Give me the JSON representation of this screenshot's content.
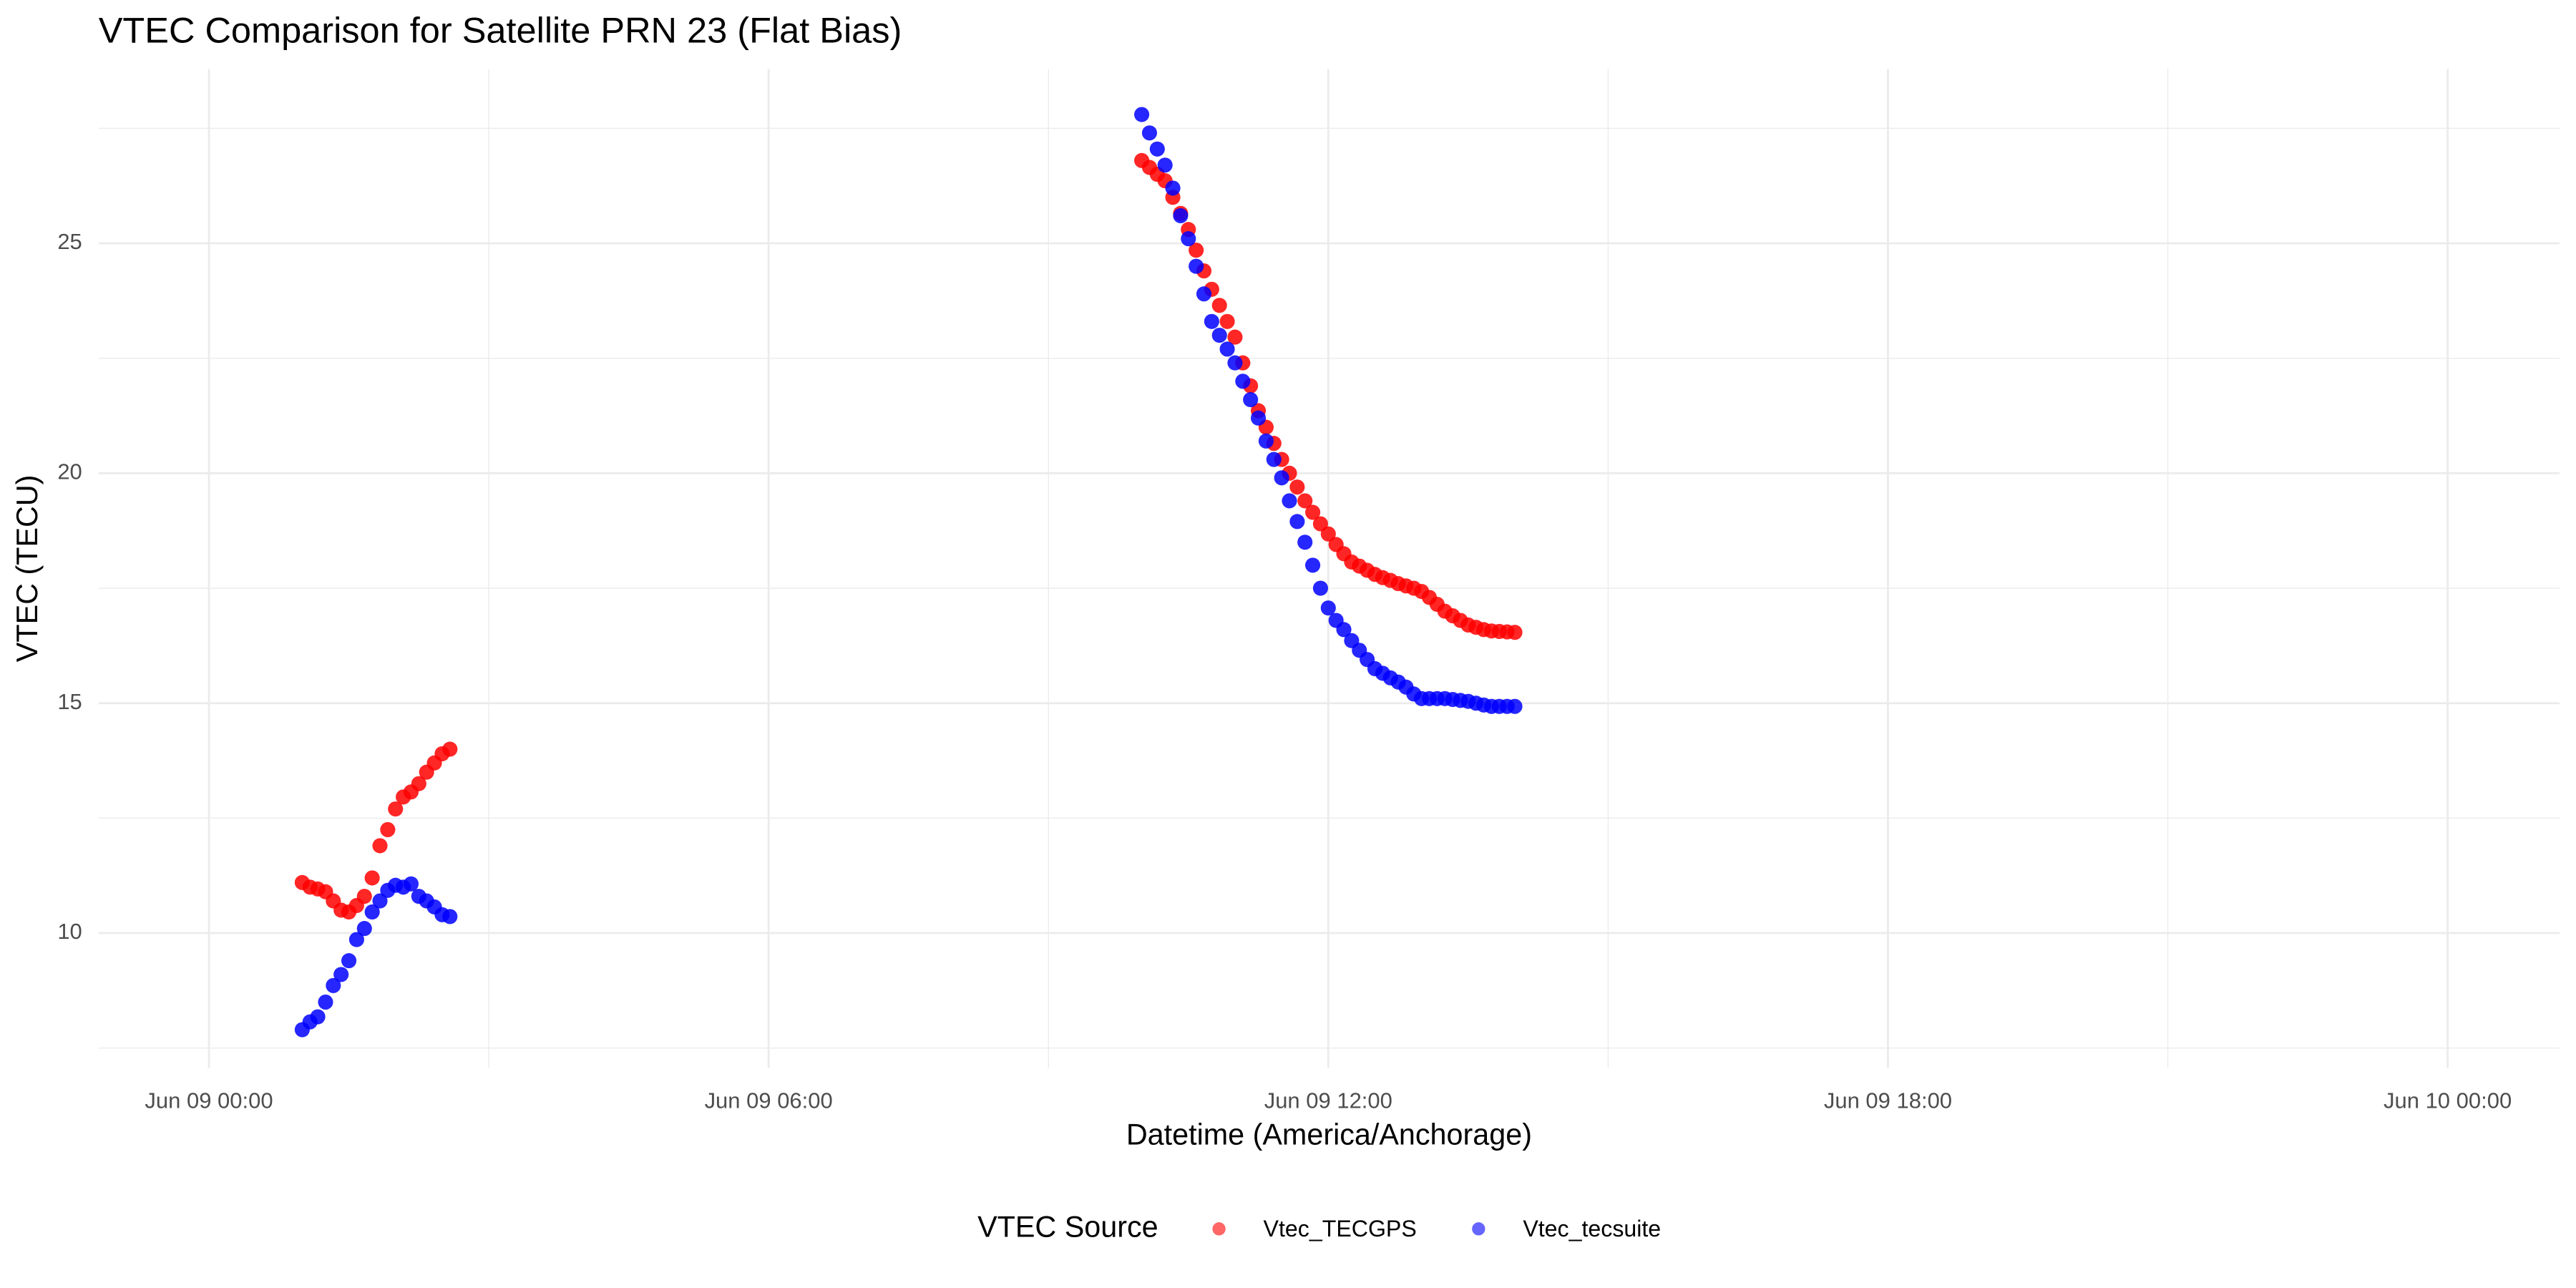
{
  "chart_data": {
    "type": "scatter",
    "title": "VTEC Comparison for Satellite PRN 23 (Flat Bias)",
    "x_label": "Datetime (America/Anchorage)",
    "y_label": "VTEC (TECU)",
    "legend_title": "VTEC Source",
    "legend": "bottom",
    "grid": true,
    "xlim": [
      "Jun 08 22:49",
      "Jun 10 01:12"
    ],
    "xticks": [
      "Jun 09 00:00",
      "Jun 09 06:00",
      "Jun 09 12:00",
      "Jun 09 18:00",
      "Jun 10 00:00"
    ],
    "x_minor_ticks": [
      "Jun 09 03:00",
      "Jun 09 09:00",
      "Jun 09 15:00",
      "Jun 09 21:00"
    ],
    "ylim": [
      7.07,
      28.79
    ],
    "yticks": [
      10,
      15,
      20,
      25
    ],
    "y_minor_ticks": [
      7.5,
      12.5,
      17.5,
      22.5,
      27.5
    ],
    "x": [
      "Jun 09 01:00",
      "Jun 09 01:05",
      "Jun 09 01:10",
      "Jun 09 01:15",
      "Jun 09 01:20",
      "Jun 09 01:25",
      "Jun 09 01:30",
      "Jun 09 01:35",
      "Jun 09 01:40",
      "Jun 09 01:45",
      "Jun 09 01:50",
      "Jun 09 01:55",
      "Jun 09 02:00",
      "Jun 09 02:05",
      "Jun 09 02:10",
      "Jun 09 02:15",
      "Jun 09 02:20",
      "Jun 09 02:25",
      "Jun 09 02:30",
      "Jun 09 02:35",
      "Jun 09 10:00",
      "Jun 09 10:05",
      "Jun 09 10:10",
      "Jun 09 10:15",
      "Jun 09 10:20",
      "Jun 09 10:25",
      "Jun 09 10:30",
      "Jun 09 10:35",
      "Jun 09 10:40",
      "Jun 09 10:45",
      "Jun 09 10:50",
      "Jun 09 10:55",
      "Jun 09 11:00",
      "Jun 09 11:05",
      "Jun 09 11:10",
      "Jun 09 11:15",
      "Jun 09 11:20",
      "Jun 09 11:25",
      "Jun 09 11:30",
      "Jun 09 11:35",
      "Jun 09 11:40",
      "Jun 09 11:45",
      "Jun 09 11:50",
      "Jun 09 11:55",
      "Jun 09 12:00",
      "Jun 09 12:05",
      "Jun 09 12:10",
      "Jun 09 12:15",
      "Jun 09 12:20",
      "Jun 09 12:25",
      "Jun 09 12:30",
      "Jun 09 12:35",
      "Jun 09 12:40",
      "Jun 09 12:45",
      "Jun 09 12:50",
      "Jun 09 12:55",
      "Jun 09 13:00",
      "Jun 09 13:05",
      "Jun 09 13:10",
      "Jun 09 13:15",
      "Jun 09 13:20",
      "Jun 09 13:25",
      "Jun 09 13:30",
      "Jun 09 13:35",
      "Jun 09 13:40",
      "Jun 09 13:45",
      "Jun 09 13:50",
      "Jun 09 13:55",
      "Jun 09 14:00"
    ],
    "series": [
      {
        "name": "Vtec_TECGPS",
        "color": "#ff0000",
        "values": [
          11.1,
          11.0,
          10.96,
          10.9,
          10.7,
          10.5,
          10.46,
          10.6,
          10.8,
          11.2,
          11.9,
          12.25,
          12.7,
          12.96,
          13.07,
          13.25,
          13.5,
          13.7,
          13.9,
          14.0,
          26.8,
          26.65,
          26.5,
          26.36,
          26.0,
          25.65,
          25.3,
          24.85,
          24.4,
          24.0,
          23.65,
          23.3,
          22.96,
          22.4,
          21.9,
          21.36,
          21.0,
          20.65,
          20.3,
          20.0,
          19.7,
          19.4,
          19.15,
          18.9,
          18.68,
          18.45,
          18.25,
          18.07,
          17.98,
          17.89,
          17.8,
          17.73,
          17.67,
          17.6,
          17.55,
          17.5,
          17.43,
          17.3,
          17.15,
          17.0,
          16.9,
          16.8,
          16.7,
          16.65,
          16.6,
          16.57,
          16.56,
          16.55,
          16.54
        ]
      },
      {
        "name": "Vtec_tecsuite",
        "color": "#0000ff",
        "values": [
          7.9,
          8.07,
          8.18,
          8.5,
          8.86,
          9.1,
          9.4,
          9.86,
          10.1,
          10.46,
          10.7,
          10.93,
          11.04,
          11.0,
          11.07,
          10.8,
          10.7,
          10.57,
          10.4,
          10.36,
          27.8,
          27.4,
          27.05,
          26.7,
          26.2,
          25.6,
          25.1,
          24.5,
          23.9,
          23.3,
          23.0,
          22.7,
          22.4,
          22.0,
          21.6,
          21.2,
          20.7,
          20.3,
          19.9,
          19.4,
          18.95,
          18.5,
          18.0,
          17.5,
          17.07,
          16.8,
          16.6,
          16.36,
          16.15,
          15.95,
          15.75,
          15.65,
          15.55,
          15.46,
          15.35,
          15.2,
          15.1,
          15.1,
          15.1,
          15.1,
          15.08,
          15.06,
          15.04,
          15.0,
          14.96,
          14.93,
          14.93,
          14.93,
          14.93
        ]
      }
    ]
  }
}
